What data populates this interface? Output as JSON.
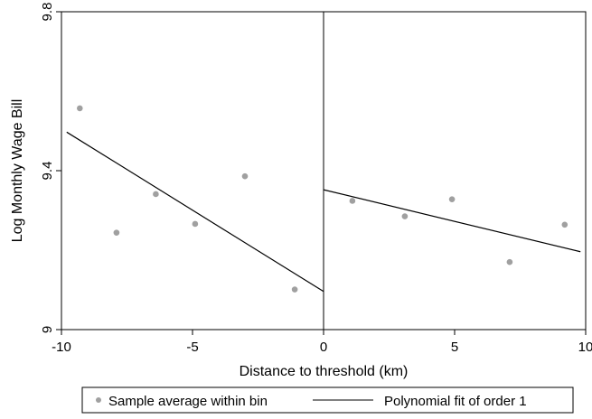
{
  "chart_data": {
    "type": "scatter",
    "title": "",
    "xlabel": "Distance to threshold (km)",
    "ylabel": "Log Monthly Wage Bill",
    "xlim": [
      -10,
      10
    ],
    "ylim": [
      9,
      9.8
    ],
    "xticks": [
      -10,
      -5,
      0,
      5,
      10
    ],
    "yticks": [
      9,
      9.4,
      9.8
    ],
    "xtick_labels": [
      "-10",
      "-5",
      "0",
      "5",
      "10"
    ],
    "ytick_labels": [
      "9",
      "9.4",
      "9.8"
    ],
    "grid": false,
    "threshold_line_x": 0,
    "colors": {
      "points": "#a0a0a0",
      "fit": "#000000",
      "axis": "#000000"
    },
    "series": [
      {
        "name": "Sample average within bin",
        "type": "scatter",
        "x": [
          -9.3,
          -7.9,
          -6.4,
          -4.9,
          -3.0,
          -1.1,
          1.1,
          3.1,
          4.9,
          7.1,
          9.2
        ],
        "y": [
          9.557,
          9.244,
          9.341,
          9.266,
          9.386,
          9.101,
          9.324,
          9.285,
          9.328,
          9.17,
          9.264
        ]
      },
      {
        "name": "Polynomial fit of order 1",
        "type": "line",
        "segments": [
          {
            "x": [
              -9.8,
              0
            ],
            "y": [
              9.497,
              9.096
            ]
          },
          {
            "x": [
              0,
              9.8
            ],
            "y": [
              9.352,
              9.196
            ]
          }
        ]
      }
    ],
    "legend": {
      "placement": "bottom",
      "items": [
        {
          "label": "Sample average within bin",
          "marker": "point"
        },
        {
          "label": "Polynomial fit of order 1",
          "marker": "line"
        }
      ]
    }
  }
}
